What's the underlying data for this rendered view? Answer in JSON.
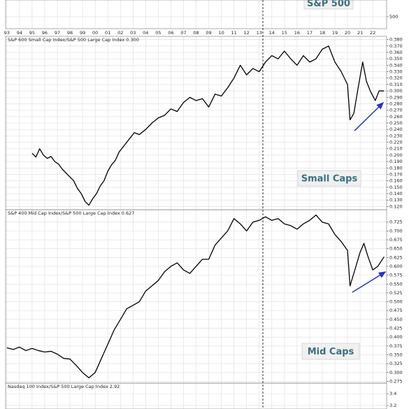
{
  "chart_data": [
    {
      "type": "line",
      "annotation": "S&P 500",
      "xlim": [
        1992.9,
        2023.1
      ],
      "xticks": [
        {
          "value": 1993,
          "label": "93"
        },
        {
          "value": 1994,
          "label": "94"
        },
        {
          "value": 1995,
          "label": "95"
        },
        {
          "value": 1996,
          "label": "96"
        },
        {
          "value": 1997,
          "label": "97"
        },
        {
          "value": 1998,
          "label": "98"
        },
        {
          "value": 1999,
          "label": "99"
        },
        {
          "value": 2000,
          "label": "00"
        },
        {
          "value": 2001,
          "label": "01"
        },
        {
          "value": 2002,
          "label": "02"
        },
        {
          "value": 2003,
          "label": "03"
        },
        {
          "value": 2004,
          "label": "04"
        },
        {
          "value": 2005,
          "label": "05"
        },
        {
          "value": 2006,
          "label": "06"
        },
        {
          "value": 2007,
          "label": "07"
        },
        {
          "value": 2008,
          "label": "08"
        },
        {
          "value": 2009,
          "label": "09"
        },
        {
          "value": 2010,
          "label": "10"
        },
        {
          "value": 2011,
          "label": "11"
        },
        {
          "value": 2012,
          "label": "12"
        },
        {
          "value": 2013,
          "label": "13"
        },
        {
          "value": 2014,
          "label": "14"
        },
        {
          "value": 2015,
          "label": "15"
        },
        {
          "value": 2016,
          "label": "16"
        },
        {
          "value": 2017,
          "label": "17"
        },
        {
          "value": 2018,
          "label": "18"
        },
        {
          "value": 2019,
          "label": "19"
        },
        {
          "value": 2020,
          "label": "20"
        },
        {
          "value": 2021,
          "label": "21"
        },
        {
          "value": 2022,
          "label": "22"
        }
      ],
      "ylim": [
        400,
        640
      ],
      "yticks": [
        500
      ],
      "grid": true
    },
    {
      "type": "line",
      "title": "S&P 600 Small Cap Index/S&P 500 Large Cap Index 0.300",
      "annotation": "Small Caps",
      "color": "#000000",
      "x": [
        1995.0,
        1995.3,
        1995.6,
        1995.9,
        1996.2,
        1996.5,
        1996.8,
        1997.1,
        1997.4,
        1997.7,
        1998.0,
        1998.3,
        1998.6,
        1998.9,
        1999.2,
        1999.5,
        1999.8,
        2000.1,
        2000.4,
        2000.7,
        2001.0,
        2001.3,
        2001.6,
        2001.9,
        2002.3,
        2002.7,
        2003.1,
        2003.5,
        2004.0,
        2004.5,
        2005.0,
        2005.5,
        2006.0,
        2006.5,
        2007.0,
        2007.5,
        2008.0,
        2008.5,
        2009.0,
        2009.5,
        2010.0,
        2010.5,
        2011.0,
        2011.5,
        2012.0,
        2012.5,
        2013.0,
        2013.5,
        2014.0,
        2014.5,
        2015.0,
        2015.5,
        2016.0,
        2016.5,
        2017.0,
        2017.5,
        2018.0,
        2018.5,
        2019.0,
        2019.5,
        2020.0,
        2020.2,
        2020.5,
        2020.8,
        2021.2,
        2021.5,
        2021.8,
        2022.2,
        2022.5,
        2022.9
      ],
      "values": [
        0.203,
        0.197,
        0.21,
        0.2,
        0.195,
        0.198,
        0.19,
        0.186,
        0.178,
        0.172,
        0.166,
        0.16,
        0.148,
        0.14,
        0.128,
        0.122,
        0.132,
        0.14,
        0.152,
        0.16,
        0.175,
        0.185,
        0.192,
        0.205,
        0.215,
        0.225,
        0.235,
        0.232,
        0.24,
        0.25,
        0.258,
        0.262,
        0.272,
        0.268,
        0.282,
        0.29,
        0.285,
        0.288,
        0.275,
        0.295,
        0.292,
        0.305,
        0.32,
        0.34,
        0.325,
        0.335,
        0.33,
        0.345,
        0.355,
        0.35,
        0.362,
        0.35,
        0.34,
        0.355,
        0.345,
        0.35,
        0.365,
        0.37,
        0.345,
        0.33,
        0.31,
        0.255,
        0.265,
        0.3,
        0.345,
        0.315,
        0.3,
        0.285,
        0.3,
        0.3
      ],
      "ylim": [
        0.115,
        0.385
      ],
      "yticks": [
        {
          "value": 0.12,
          "label": "0.120"
        },
        {
          "value": 0.13,
          "label": "0.130"
        },
        {
          "value": 0.14,
          "label": "0.140"
        },
        {
          "value": 0.15,
          "label": "0.150"
        },
        {
          "value": 0.16,
          "label": "0.160"
        },
        {
          "value": 0.17,
          "label": "0.170"
        },
        {
          "value": 0.18,
          "label": "0.180"
        },
        {
          "value": 0.19,
          "label": "0.190"
        },
        {
          "value": 0.2,
          "label": "0.200"
        },
        {
          "value": 0.21,
          "label": "0.210"
        },
        {
          "value": 0.22,
          "label": "0.220"
        },
        {
          "value": 0.23,
          "label": "0.230"
        },
        {
          "value": 0.24,
          "label": "0.240"
        },
        {
          "value": 0.25,
          "label": "0.250"
        },
        {
          "value": 0.26,
          "label": "0.260"
        },
        {
          "value": 0.27,
          "label": "0.270"
        },
        {
          "value": 0.28,
          "label": "0.280"
        },
        {
          "value": 0.29,
          "label": "0.290"
        },
        {
          "value": 0.3,
          "label": "0.300"
        },
        {
          "value": 0.31,
          "label": "0.310"
        },
        {
          "value": 0.32,
          "label": "0.320"
        },
        {
          "value": 0.33,
          "label": "0.330"
        },
        {
          "value": 0.34,
          "label": "0.340"
        },
        {
          "value": 0.35,
          "label": "0.350"
        },
        {
          "value": 0.36,
          "label": "0.360"
        },
        {
          "value": 0.37,
          "label": "0.370"
        },
        {
          "value": 0.38,
          "label": "0.380"
        }
      ],
      "grid": true
    },
    {
      "type": "line",
      "title": "S&P 400 Mid Cap Index/S&P 500 Large Cap Index 0.627",
      "annotation": "Mid Caps",
      "color": "#000000",
      "x": [
        1993.0,
        1993.5,
        1994.0,
        1994.5,
        1995.0,
        1995.5,
        1996.0,
        1996.5,
        1997.0,
        1997.5,
        1998.0,
        1998.5,
        1999.0,
        1999.5,
        2000.0,
        2000.5,
        2001.0,
        2001.5,
        2002.0,
        2002.5,
        2003.0,
        2003.5,
        2004.0,
        2004.5,
        2005.0,
        2005.5,
        2006.0,
        2006.5,
        2007.0,
        2007.5,
        2008.0,
        2008.5,
        2009.0,
        2009.5,
        2010.0,
        2010.5,
        2011.0,
        2011.5,
        2012.0,
        2012.5,
        2013.0,
        2013.5,
        2014.0,
        2014.5,
        2015.0,
        2015.5,
        2016.0,
        2016.5,
        2017.0,
        2017.5,
        2018.0,
        2018.5,
        2019.0,
        2019.5,
        2020.0,
        2020.2,
        2020.5,
        2021.0,
        2021.3,
        2021.6,
        2022.0,
        2022.4,
        2022.9
      ],
      "values": [
        0.37,
        0.365,
        0.372,
        0.362,
        0.368,
        0.362,
        0.358,
        0.36,
        0.352,
        0.34,
        0.338,
        0.32,
        0.3,
        0.285,
        0.3,
        0.34,
        0.38,
        0.42,
        0.45,
        0.48,
        0.49,
        0.5,
        0.53,
        0.545,
        0.56,
        0.585,
        0.6,
        0.61,
        0.59,
        0.58,
        0.6,
        0.62,
        0.62,
        0.66,
        0.68,
        0.7,
        0.735,
        0.72,
        0.7,
        0.725,
        0.73,
        0.74,
        0.73,
        0.735,
        0.72,
        0.715,
        0.705,
        0.72,
        0.73,
        0.745,
        0.725,
        0.72,
        0.69,
        0.67,
        0.645,
        0.545,
        0.58,
        0.64,
        0.665,
        0.63,
        0.59,
        0.6,
        0.627
      ],
      "ylim": [
        0.27,
        0.76
      ],
      "yticks": [
        {
          "value": 0.275,
          "label": "0.275"
        },
        {
          "value": 0.3,
          "label": "0.300"
        },
        {
          "value": 0.325,
          "label": "0.325"
        },
        {
          "value": 0.35,
          "label": "0.350"
        },
        {
          "value": 0.375,
          "label": "0.375"
        },
        {
          "value": 0.4,
          "label": "0.400"
        },
        {
          "value": 0.425,
          "label": "0.425"
        },
        {
          "value": 0.45,
          "label": "0.450"
        },
        {
          "value": 0.475,
          "label": "0.475"
        },
        {
          "value": 0.5,
          "label": "0.500"
        },
        {
          "value": 0.525,
          "label": "0.525"
        },
        {
          "value": 0.55,
          "label": "0.550"
        },
        {
          "value": 0.575,
          "label": "0.575"
        },
        {
          "value": 0.6,
          "label": "0.600"
        },
        {
          "value": 0.625,
          "label": "0.625"
        },
        {
          "value": 0.65,
          "label": "0.650"
        },
        {
          "value": 0.675,
          "label": "0.675"
        },
        {
          "value": 0.7,
          "label": "0.700"
        },
        {
          "value": 0.725,
          "label": "0.725"
        }
      ],
      "grid": true
    },
    {
      "type": "line",
      "title": "Nasdaq 100 Index/S&P 500 Large Cap Index 2.92",
      "ylim": [
        3.14,
        3.58
      ],
      "yticks": [
        3.2,
        3.4
      ],
      "grid": true
    }
  ]
}
